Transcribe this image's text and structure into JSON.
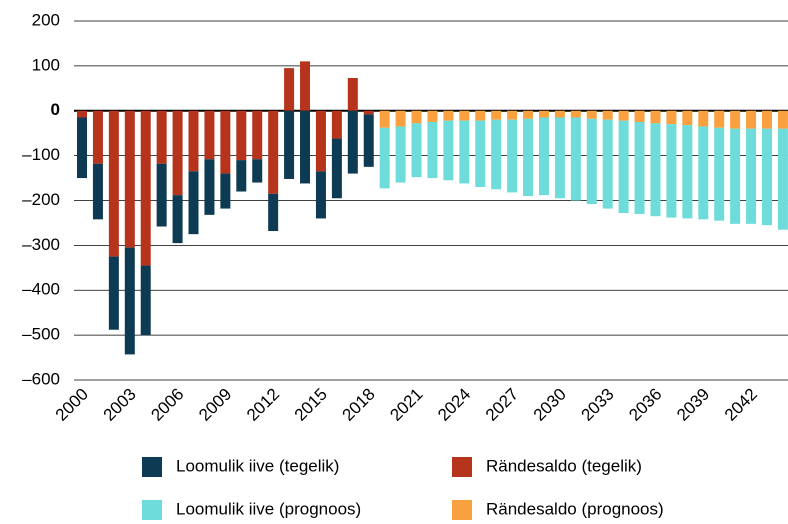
{
  "chart_data": {
    "type": "bar",
    "stacked": true,
    "categories": [
      "2000",
      null,
      null,
      "2003",
      null,
      null,
      "2006",
      null,
      null,
      "2009",
      null,
      null,
      "2012",
      null,
      null,
      "2015",
      null,
      null,
      "2018",
      null,
      null,
      "2021",
      null,
      null,
      "2024",
      null,
      null,
      "2027",
      null,
      null,
      "2030",
      null,
      null,
      "2033",
      null,
      null,
      "2036",
      null,
      null,
      "2039",
      null,
      null,
      "2042",
      null,
      null
    ],
    "series": [
      {
        "name": "Loomulik iive (tegelik)",
        "color": "#0d3b53",
        "values": [
          -135,
          -124,
          -163,
          -238,
          -155,
          -140,
          -107,
          -140,
          -124,
          -78,
          -70,
          -52,
          -83,
          -152,
          -162,
          -105,
          -133,
          -140,
          -117,
          null,
          null,
          null,
          null,
          null,
          null,
          null,
          null,
          null,
          null,
          null,
          null,
          null,
          null,
          null,
          null,
          null,
          null,
          null,
          null,
          null,
          null,
          null,
          null,
          null,
          null
        ]
      },
      {
        "name": "Rändesaldo (tegelik)",
        "color": "#b5341b",
        "values": [
          -15,
          -118,
          -325,
          -305,
          -345,
          -118,
          -188,
          -135,
          -108,
          -140,
          -110,
          -108,
          -185,
          95,
          110,
          -135,
          -62,
          73,
          -8,
          null,
          null,
          null,
          null,
          null,
          null,
          null,
          null,
          null,
          null,
          null,
          null,
          null,
          null,
          null,
          null,
          null,
          null,
          null,
          null,
          null,
          null,
          null,
          null,
          null,
          null
        ]
      },
      {
        "name": "Loomulik iive (prognoos)",
        "color": "#6fdcdc",
        "values": [
          null,
          null,
          null,
          null,
          null,
          null,
          null,
          null,
          null,
          null,
          null,
          null,
          null,
          null,
          null,
          null,
          null,
          null,
          null,
          -135,
          -125,
          -120,
          -125,
          -133,
          -140,
          -148,
          -155,
          -162,
          -172,
          -173,
          -180,
          -185,
          -190,
          -198,
          -206,
          -205,
          -207,
          -208,
          -208,
          -207,
          -207,
          -212,
          -212,
          -215,
          -225
        ]
      },
      {
        "name": "Rändesaldo (prognoos)",
        "color": "#f9a03f",
        "values": [
          null,
          null,
          null,
          null,
          null,
          null,
          null,
          null,
          null,
          null,
          null,
          null,
          null,
          null,
          null,
          null,
          null,
          null,
          null,
          -38,
          -35,
          -28,
          -25,
          -22,
          -22,
          -22,
          -20,
          -20,
          -18,
          -15,
          -15,
          -15,
          -18,
          -20,
          -22,
          -25,
          -28,
          -30,
          -32,
          -35,
          -38,
          -40,
          -40,
          -40,
          -40
        ]
      }
    ],
    "ylim": [
      -600,
      200
    ],
    "yticks": [
      {
        "value": -600,
        "label": "–600"
      },
      {
        "value": -500,
        "label": "–500"
      },
      {
        "value": -400,
        "label": "–400"
      },
      {
        "value": -300,
        "label": "–300"
      },
      {
        "value": -200,
        "label": "–200"
      },
      {
        "value": -100,
        "label": "–100"
      },
      0,
      100,
      200
    ],
    "grid": true
  }
}
